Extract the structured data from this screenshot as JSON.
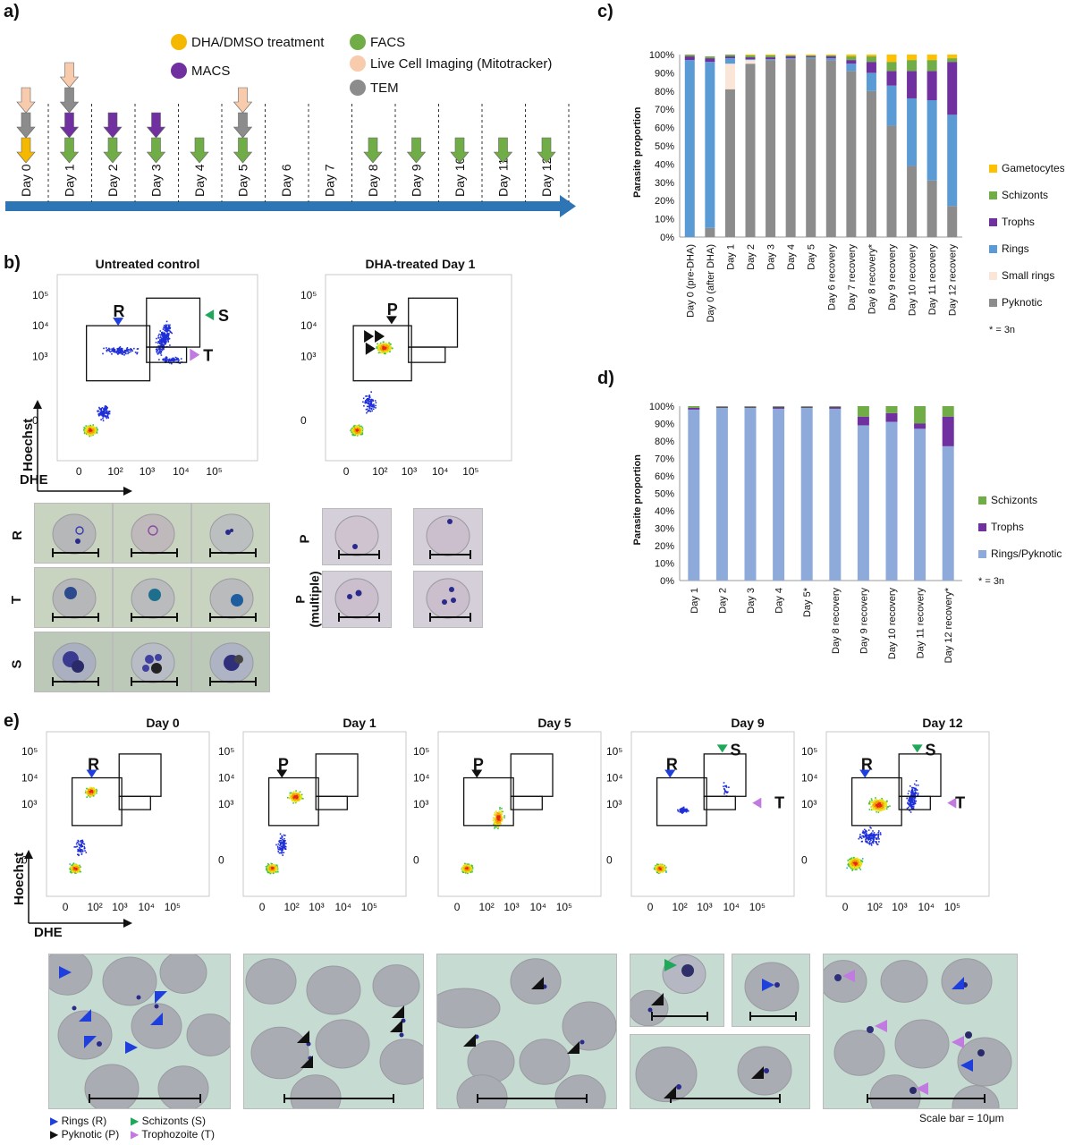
{
  "panel_labels": {
    "a": "a)",
    "b": "b)",
    "c": "c)",
    "d": "d)",
    "e": "e)"
  },
  "timeline": {
    "legend": [
      {
        "label": "DHA/DMSO treatment",
        "color": "#f5b800"
      },
      {
        "label": "MACS",
        "color": "#7030a0"
      },
      {
        "label": "FACS",
        "color": "#70ad47"
      },
      {
        "label": "Live Cell Imaging (Mitotracker)",
        "color": "#f8cbad"
      },
      {
        "label": "TEM",
        "color": "#8c8c8c"
      }
    ],
    "days": [
      "Day 0",
      "Day 1",
      "Day 2",
      "Day 3",
      "Day 4",
      "Day 5",
      "Day 6",
      "Day 7",
      "Day 8",
      "Day 9",
      "Day 10",
      "Day 11",
      "Day 12"
    ],
    "arrows": [
      [
        "live",
        "tem",
        "dha"
      ],
      [
        "live",
        "tem",
        "macs",
        "facs"
      ],
      [
        "macs",
        "facs"
      ],
      [
        "macs",
        "facs"
      ],
      [
        "facs"
      ],
      [
        "live",
        "tem",
        "facs"
      ],
      [],
      [],
      [
        "facs"
      ],
      [
        "facs"
      ],
      [
        "facs"
      ],
      [
        "facs"
      ],
      [
        "facs"
      ]
    ]
  },
  "panel_b": {
    "untreated_title": "Untreated control",
    "treated_title": "DHA-treated Day 1",
    "yaxis": "Hoechst",
    "xaxis": "DHE",
    "gate_R": "R",
    "gate_S": "S",
    "gate_T": "T",
    "gate_P": "P",
    "row_labels": [
      "R",
      "T",
      "S"
    ],
    "p_labels": [
      "P",
      "P",
      "(multiple)"
    ]
  },
  "tick_labels": {
    "y": [
      "10⁵",
      "10⁴",
      "10³",
      "0"
    ],
    "x": [
      "0",
      "10²",
      "10³",
      "10⁴",
      "10⁵"
    ]
  },
  "chart_data": [
    {
      "type": "bar",
      "panel": "c",
      "ylabel": "Parasite proportion",
      "ylim": [
        0,
        100
      ],
      "yticks": [
        "0%",
        "10%",
        "20%",
        "30%",
        "40%",
        "50%",
        "60%",
        "70%",
        "80%",
        "90%",
        "100%"
      ],
      "categories": [
        "Day 0 (pre-DHA)",
        "Day 0 (after DHA)",
        "Day 1",
        "Day 2",
        "Day 3",
        "Day 4",
        "Day 5",
        "Day 6 recovery",
        "Day 7 recovery",
        "Day 8 recovery*",
        "Day 9 recovery",
        "Day 10 recovery",
        "Day 11 recovery",
        "Day 12 recovery"
      ],
      "series": [
        {
          "name": "Pyknotic",
          "color": "#8c8c8c",
          "values": [
            0,
            5,
            81,
            95,
            97,
            97.5,
            98,
            97,
            91,
            80,
            61,
            39,
            31,
            17
          ]
        },
        {
          "name": "Small rings",
          "color": "#fbe5d6",
          "values": [
            0,
            0,
            14,
            2,
            0,
            0,
            0,
            0,
            0,
            0,
            0,
            0,
            0,
            0
          ]
        },
        {
          "name": "Rings",
          "color": "#5b9bd5",
          "values": [
            97,
            91,
            3,
            0.5,
            0.5,
            0.5,
            0.5,
            1,
            4,
            10,
            22,
            37,
            44,
            50
          ]
        },
        {
          "name": "Trophs",
          "color": "#7030a0",
          "values": [
            2,
            2,
            1,
            1,
            1,
            1,
            0.5,
            1,
            2,
            6,
            8,
            15,
            16,
            29
          ]
        },
        {
          "name": "Schizonts",
          "color": "#70ad47",
          "values": [
            1,
            1,
            1,
            1,
            1,
            0.5,
            0.5,
            0.5,
            2,
            3,
            5,
            6,
            6,
            2
          ]
        },
        {
          "name": "Gametocytes",
          "color": "#ffc000",
          "values": [
            0,
            0,
            0,
            0.5,
            0.5,
            0.5,
            0.5,
            0.5,
            1,
            1,
            4,
            3,
            3,
            2
          ]
        }
      ],
      "legend_order": [
        "Gametocytes",
        "Schizonts",
        "Trophs",
        "Rings",
        "Small rings",
        "Pyknotic"
      ],
      "note": "* = 3n"
    },
    {
      "type": "bar",
      "panel": "d",
      "ylabel": "Parasite proportion",
      "ylim": [
        0,
        100
      ],
      "yticks": [
        "0%",
        "10%",
        "20%",
        "30%",
        "40%",
        "50%",
        "60%",
        "70%",
        "80%",
        "90%",
        "100%"
      ],
      "categories": [
        "Day 1",
        "Day 2",
        "Day 3",
        "Day 4",
        "Day 5*",
        "Day 8 recovery",
        "Day 9 recovery",
        "Day 10 recovery",
        "Day 11 recovery",
        "Day 12 recovery*"
      ],
      "series": [
        {
          "name": "Rings/Pyknotic",
          "color": "#8eaadb",
          "values": [
            98,
            99,
            99,
            98.5,
            99,
            98.5,
            89,
            91,
            87,
            77
          ]
        },
        {
          "name": "Trophs",
          "color": "#7030a0",
          "values": [
            1,
            0.5,
            0.5,
            1,
            0.5,
            1,
            5,
            5,
            3,
            17
          ]
        },
        {
          "name": "Schizonts",
          "color": "#70ad47",
          "values": [
            1,
            0.5,
            0.5,
            0.5,
            0.5,
            0.5,
            6,
            4,
            10,
            6
          ]
        }
      ],
      "legend_order": [
        "Schizonts",
        "Trophs",
        "Rings/Pyknotic"
      ],
      "note": "* = 3n"
    }
  ],
  "panel_e": {
    "titles": [
      "Day 0",
      "Day 1",
      "Day 5",
      "Day 9",
      "Day 12"
    ],
    "gates": [
      [
        "R"
      ],
      [
        "P"
      ],
      [
        "P"
      ],
      [
        "R",
        "S",
        "T"
      ],
      [
        "R",
        "S",
        "T"
      ]
    ],
    "yaxis": "Hoechst",
    "xaxis": "DHE",
    "legend": [
      {
        "label": "Rings (R)",
        "color": "#1f3fdc"
      },
      {
        "label": "Schizonts (S)",
        "color": "#1fa85a"
      },
      {
        "label": "Pyknotic (P)",
        "color": "#111111"
      },
      {
        "label": "Trophozoite (T)",
        "color": "#c07ae0"
      }
    ],
    "scale_note": "Scale bar = 10μm"
  }
}
